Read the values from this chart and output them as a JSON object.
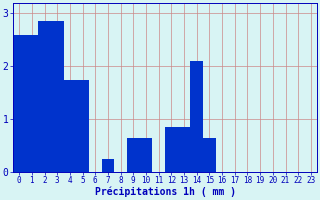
{
  "values": [
    2.6,
    2.6,
    2.85,
    2.85,
    1.75,
    1.75,
    0.0,
    0.25,
    0.0,
    0.65,
    0.65,
    0.0,
    0.85,
    0.85,
    2.1,
    0.65,
    0.0,
    0.0,
    0.0,
    0.0,
    0.0,
    0.0,
    0.0,
    0.0
  ],
  "xlabel": "Précipitations 1h ( mm )",
  "bar_color": "#0033cc",
  "background_color": "#d8f4f4",
  "grid_color": "#cc8888",
  "tick_color": "#0000bb",
  "label_color": "#0000bb",
  "ylim": [
    0,
    3.2
  ],
  "yticks": [
    0,
    1,
    2,
    3
  ],
  "xlabel_fontsize": 7.0,
  "tick_fontsize": 5.5,
  "ytick_fontsize": 7.0
}
